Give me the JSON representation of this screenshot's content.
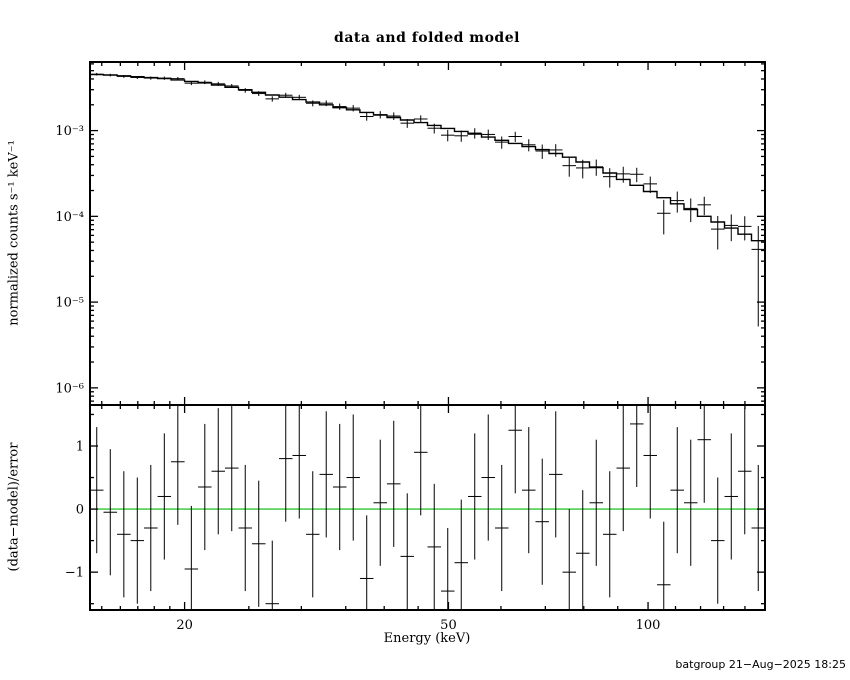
{
  "footer": "batgroup 21−Aug−2025 18:25",
  "chart_data": {
    "type": "line",
    "title": "data and folded model",
    "xlabel": "Energy (keV)",
    "xscale": "log",
    "xlim": [
      14.4,
      150.1
    ],
    "xticks_major": [
      20,
      50,
      100
    ],
    "xtick_labels": [
      "20",
      "50",
      "100"
    ],
    "xticks_minor": [
      15,
      16,
      17,
      18,
      19,
      25,
      30,
      35,
      40,
      45,
      60,
      70,
      80,
      90,
      110,
      120,
      130,
      140
    ],
    "zero_line_color": "#00bb00",
    "panels": [
      {
        "name": "spectrum",
        "ylabel": "normalized counts s⁻¹ keV⁻¹",
        "yscale": "log",
        "ylim_log10": [
          -6.2,
          -2.2
        ],
        "ytick_labels": [
          {
            "log10": -3,
            "label": "10⁻³"
          },
          {
            "log10": -4,
            "label": "10⁻⁴"
          },
          {
            "log10": -5,
            "label": "10⁻⁵"
          },
          {
            "log10": -6,
            "label": "10⁻⁶"
          }
        ]
      },
      {
        "name": "residuals",
        "ylabel": "(data−model)/error",
        "yscale": "linear",
        "ylim": [
          -1.6,
          1.65
        ],
        "yticks": [
          {
            "v": 1,
            "label": "1"
          },
          {
            "v": 0,
            "label": "0"
          },
          {
            "v": -1,
            "label": "−1"
          }
        ],
        "yticks_minor": [
          -1.5,
          -0.5,
          0.5,
          1.5
        ]
      }
    ],
    "bins": {
      "edges": [
        14.4,
        15.09,
        15.82,
        16.58,
        17.37,
        18.21,
        19.08,
        20.0,
        20.96,
        21.96,
        23.01,
        24.12,
        25.27,
        26.49,
        27.76,
        29.09,
        30.49,
        31.95,
        33.48,
        35.09,
        36.77,
        38.54,
        40.39,
        42.33,
        44.36,
        46.49,
        48.72,
        51.06,
        53.51,
        56.08,
        58.77,
        61.59,
        64.55,
        67.65,
        70.89,
        74.3,
        77.86,
        81.6,
        85.52,
        89.62,
        93.92,
        98.43,
        103.16,
        108.11,
        113.3,
        118.73,
        124.43,
        130.41,
        136.67,
        143.23,
        150.1
      ],
      "model": [
        0.0045,
        0.00445,
        0.00435,
        0.00425,
        0.00415,
        0.00405,
        0.0039,
        0.00375,
        0.0036,
        0.0034,
        0.0032,
        0.003,
        0.0028,
        0.0026,
        0.00245,
        0.0023,
        0.00215,
        0.002,
        0.00185,
        0.00175,
        0.00163,
        0.00152,
        0.00142,
        0.00133,
        0.00124,
        0.00115,
        0.00106,
        0.00098,
        0.00091,
        0.00084,
        0.00077,
        0.00071,
        0.00065,
        0.0006,
        0.00054,
        0.00049,
        0.00043,
        0.00037,
        0.00032,
        0.00027,
        0.00023,
        0.000195,
        0.000165,
        0.00014,
        0.00012,
        0.0001,
        8.6e-05,
        7.3e-05,
        6.2e-05,
        5.2e-05
      ],
      "err": [
        0.00016,
        0.00016,
        0.000165,
        0.00017,
        0.000175,
        0.00018,
        0.00018,
        0.000185,
        0.000185,
        0.000185,
        0.00018,
        0.00018,
        0.000175,
        0.00017,
        0.00017,
        0.00017,
        0.000165,
        0.00016,
        0.00016,
        0.000155,
        0.000155,
        0.00015,
        0.00015,
        0.000145,
        0.00014,
        0.00014,
        0.000135,
        0.00013,
        0.00013,
        0.000125,
        0.00012,
        0.000115,
        0.00011,
        0.00011,
        0.0001,
        0.0001,
        9e-05,
        8.1e-05,
        7.4e-05,
        6.6e-05,
        5.9e-05,
        5.2e-05,
        4.7e-05,
        4.2e-05,
        3.8e-05,
        3.3e-05,
        3e-05,
        2.7e-05,
        2.4e-05,
        3.6e-05
      ],
      "resid": [
        0.3,
        -0.05,
        -0.4,
        -0.5,
        -0.3,
        0.2,
        0.75,
        -0.95,
        0.35,
        0.6,
        0.65,
        -0.3,
        -0.55,
        -1.5,
        0.8,
        0.85,
        -0.4,
        0.55,
        0.35,
        0.5,
        -1.1,
        0.1,
        0.4,
        -0.75,
        0.9,
        -0.6,
        -1.3,
        -0.85,
        0.2,
        0.5,
        -0.3,
        1.25,
        0.3,
        -0.2,
        0.55,
        -1.0,
        -0.7,
        0.1,
        -0.4,
        0.65,
        1.35,
        0.85,
        -1.2,
        0.3,
        0.1,
        1.1,
        -0.5,
        0.2,
        0.6,
        -0.3
      ]
    }
  }
}
